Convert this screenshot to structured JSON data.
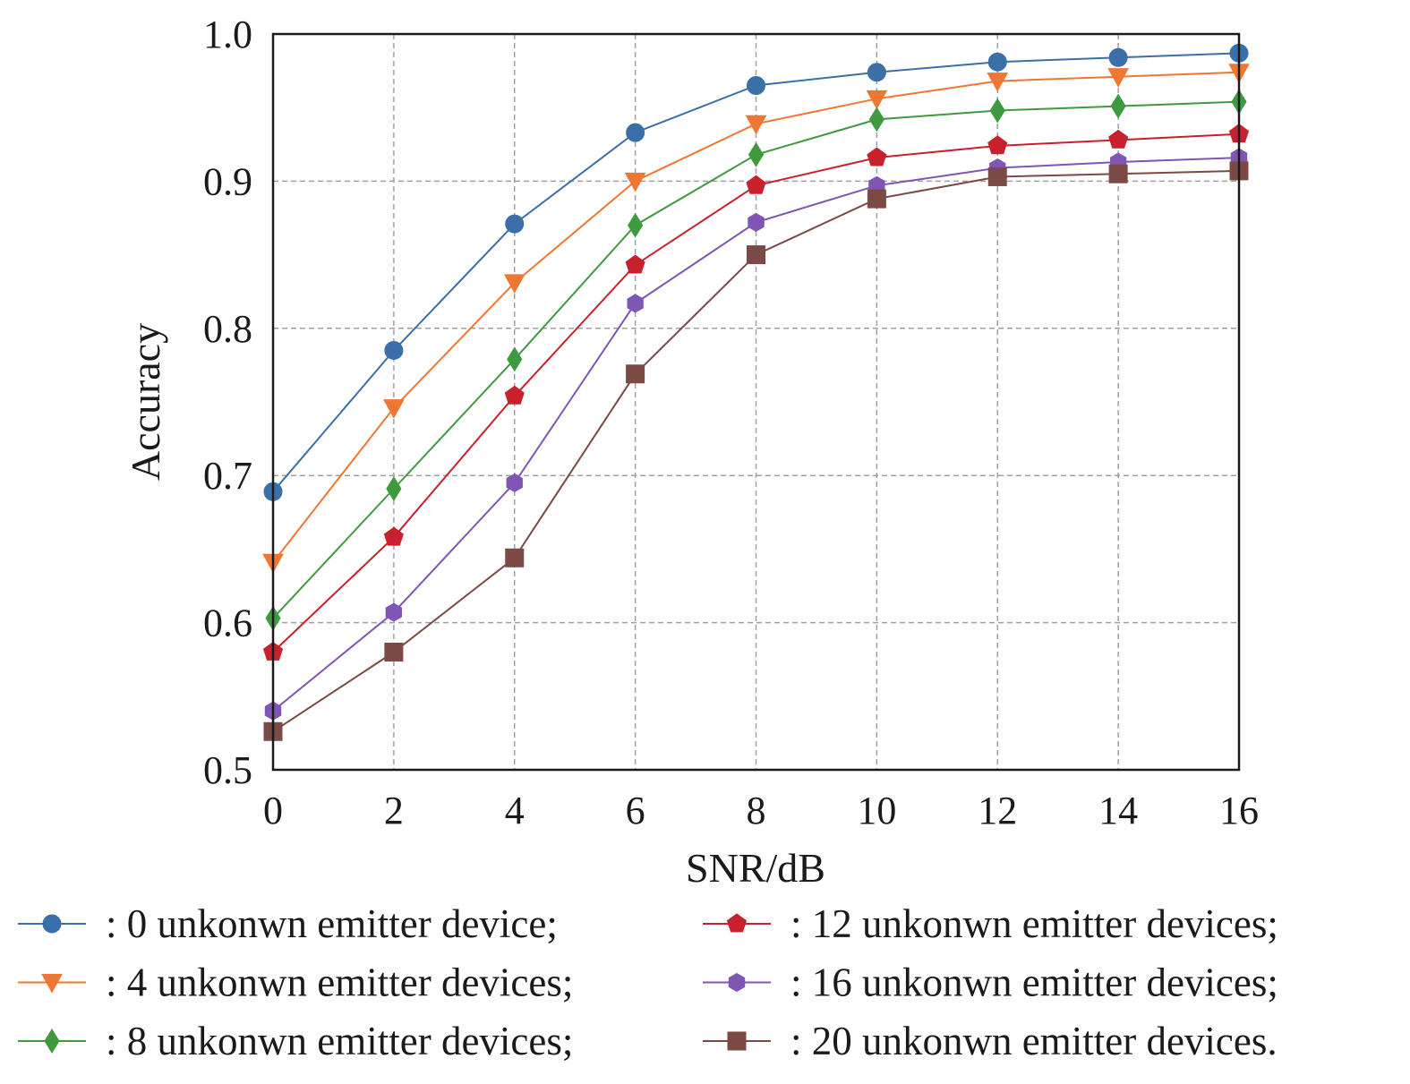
{
  "chart_data": {
    "type": "line",
    "title": "",
    "xlabel": "SNR/dB",
    "ylabel": "Accuracy",
    "xlim": [
      0,
      16
    ],
    "ylim": [
      0.5,
      1.0
    ],
    "grid": true,
    "legend_placement": "bottom",
    "x": [
      0,
      2,
      4,
      6,
      8,
      10,
      12,
      14,
      16
    ],
    "xticks": [
      "0",
      "2",
      "4",
      "6",
      "8",
      "10",
      "12",
      "14",
      "16"
    ],
    "yticks": [
      "0.5",
      "0.6",
      "0.7",
      "0.8",
      "0.9",
      "1.0"
    ],
    "series": [
      {
        "name": ": 0 unkonwn emitter device;",
        "color": "#3a6fa8",
        "marker": "circle",
        "values": [
          0.689,
          0.785,
          0.871,
          0.933,
          0.965,
          0.974,
          0.981,
          0.984,
          0.987
        ]
      },
      {
        "name": ": 4 unkonwn emitter devices;",
        "color": "#ee7733",
        "marker": "triangle-down",
        "values": [
          0.641,
          0.746,
          0.831,
          0.9,
          0.939,
          0.956,
          0.968,
          0.971,
          0.974
        ]
      },
      {
        "name": ": 8 unkonwn emitter devices;",
        "color": "#3f9a3f",
        "marker": "diamond",
        "values": [
          0.603,
          0.691,
          0.779,
          0.87,
          0.918,
          0.942,
          0.948,
          0.951,
          0.954
        ]
      },
      {
        "name": ": 12 unkonwn emitter devices;",
        "color": "#c8202d",
        "marker": "pentagon",
        "values": [
          0.58,
          0.658,
          0.754,
          0.843,
          0.897,
          0.916,
          0.924,
          0.928,
          0.932
        ]
      },
      {
        "name": ": 16 unkonwn emitter devices;",
        "color": "#7f55b5",
        "marker": "hexagon",
        "values": [
          0.54,
          0.607,
          0.695,
          0.817,
          0.872,
          0.897,
          0.909,
          0.913,
          0.916
        ]
      },
      {
        "name": ": 20 unkonwn emitter devices.",
        "color": "#7b4a45",
        "marker": "square",
        "values": [
          0.526,
          0.58,
          0.644,
          0.769,
          0.85,
          0.888,
          0.903,
          0.905,
          0.907
        ]
      }
    ]
  }
}
